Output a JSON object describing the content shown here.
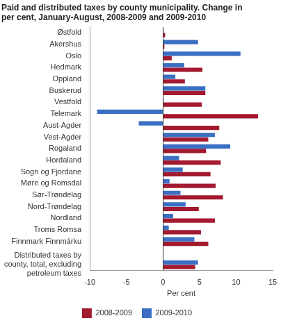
{
  "chart_data": {
    "type": "bar",
    "orientation": "horizontal",
    "title": [
      "Paid and distributed taxes by county municipality. Change in",
      "per cent, January-August, 2008-2009 and 2009-2010"
    ],
    "x_label": "Per cent",
    "categories": [
      "Østfold",
      "Akershus",
      "Oslo",
      "Hedmark",
      "Oppland",
      "Buskerud",
      "Vestfold",
      "Telemark",
      "Aust-Agder",
      "Vest-Agder",
      "Rogaland",
      "Hordaland",
      "Sogn og Fjordane",
      "Møre og Romsdal",
      "Sør-Trøndelag",
      "Nord-Trøndelag",
      "Nordland",
      "Troms Romsa",
      "Finnmark Finnmárku",
      null,
      "Distributed taxes by county, total, excluding petroleum taxes"
    ],
    "series": [
      {
        "name": "2008-2009",
        "color": "#a3192f",
        "values": [
          0.3,
          0.2,
          1.2,
          5.4,
          3.0,
          5.8,
          5.3,
          13.0,
          7.7,
          6.2,
          5.9,
          7.9,
          6.5,
          7.2,
          8.2,
          4.9,
          7.1,
          5.2,
          6.2,
          null,
          4.4
        ]
      },
      {
        "name": "2009-2010",
        "color": "#3b6fc4",
        "values": [
          0.1,
          4.8,
          10.6,
          2.9,
          1.7,
          5.8,
          0.1,
          -9.0,
          -3.3,
          7.1,
          9.2,
          2.2,
          2.7,
          0.9,
          2.4,
          3.1,
          1.4,
          0.8,
          4.3,
          null,
          4.8
        ]
      }
    ],
    "xlim": [
      -10,
      15
    ],
    "xticks": [
      -10,
      -5,
      0,
      5,
      10,
      15
    ],
    "grid": false,
    "legend": "bottom"
  }
}
